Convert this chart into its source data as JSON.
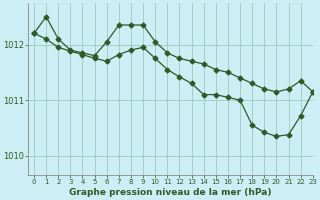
{
  "title": "Graphe pression niveau de la mer (hPa)",
  "bg_color": "#cdeef5",
  "grid_color": "#99ccbb",
  "line_color": "#2d5a27",
  "xlim": [
    -0.5,
    23
  ],
  "ylim": [
    1009.65,
    1012.75
  ],
  "yticks": [
    1010,
    1011,
    1012
  ],
  "xticks": [
    0,
    1,
    2,
    3,
    4,
    5,
    6,
    7,
    8,
    9,
    10,
    11,
    12,
    13,
    14,
    15,
    16,
    17,
    18,
    19,
    20,
    21,
    22,
    23
  ],
  "series1": [
    1012.2,
    1012.5,
    1012.1,
    1011.9,
    1011.85,
    1011.8,
    1012.05,
    1012.35,
    1012.35,
    1012.35,
    1012.05,
    1011.85,
    1011.75,
    1011.7,
    1011.65,
    1011.55,
    1011.5,
    1011.4,
    1011.3,
    1011.2,
    1011.15,
    1011.2,
    1011.35,
    1011.15
  ],
  "series2": [
    1012.2,
    1012.1,
    1011.95,
    1011.88,
    1011.82,
    1011.75,
    1011.7,
    1011.82,
    1011.9,
    1011.95,
    1011.75,
    1011.55,
    1011.42,
    1011.3,
    1011.1,
    1011.1,
    1011.05,
    1011.0,
    1010.55,
    1010.42,
    1010.35,
    1010.38,
    1010.72,
    1011.15
  ],
  "fig_width": 3.2,
  "fig_height": 2.0,
  "dpi": 100
}
